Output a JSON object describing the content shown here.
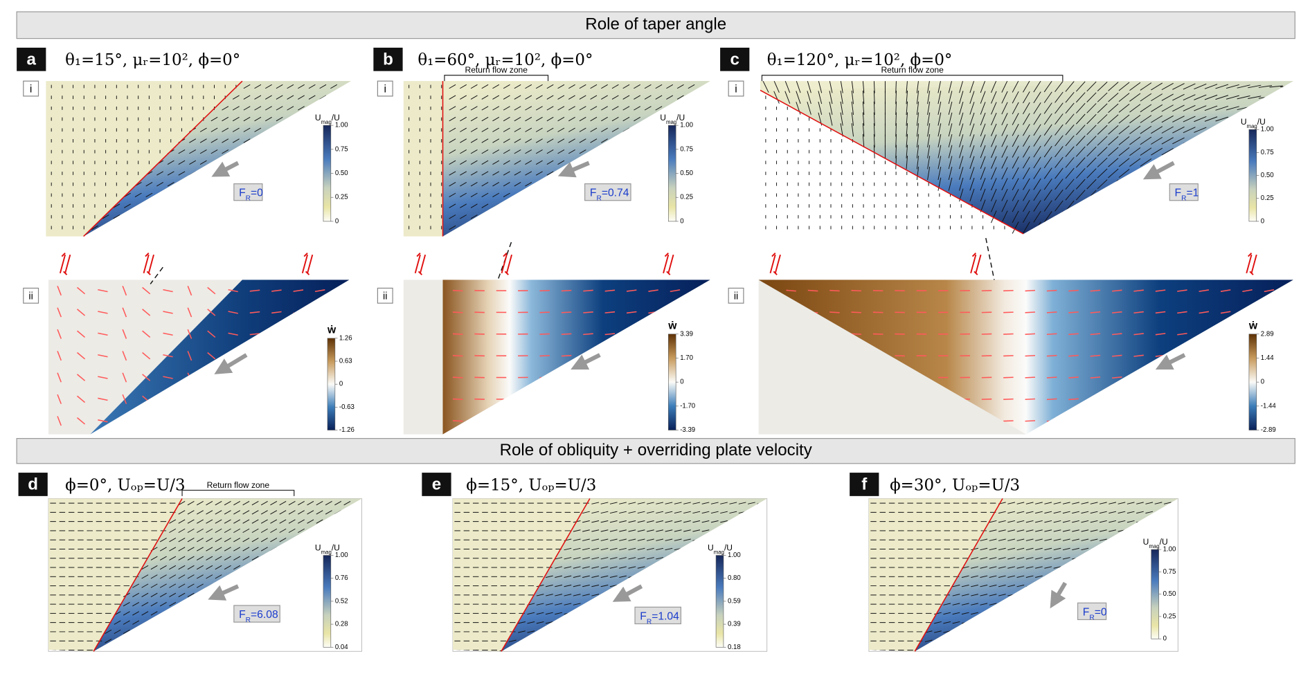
{
  "header_top": "Role of taper angle",
  "header_bottom": "Role of obliquity + overriding plate velocity",
  "panels": [
    {
      "letter": "a",
      "title": "θ₁=15°, μᵣ=10², ϕ=0°",
      "sub_i": "i",
      "sub_ii": "ii",
      "colorbar": {
        "label": [
          "U",
          "mag",
          "/U"
        ],
        "ticks": [
          "1.00",
          "0.75",
          "0.50",
          "0.25",
          "0"
        ]
      },
      "fr": [
        "F",
        "R",
        "=0"
      ],
      "colorbar_ii": {
        "label": "ẇ",
        "ticks": [
          "1.26",
          "0.63",
          "0",
          "-0.63",
          "-1.26"
        ]
      }
    },
    {
      "letter": "b",
      "title": "θ₁=60°, μᵣ=10², ϕ=0°",
      "sub_i": "i",
      "sub_ii": "ii",
      "return_flow": "Return flow zone",
      "colorbar": {
        "label": [
          "U",
          "mag",
          "/U"
        ],
        "ticks": [
          "1.00",
          "0.75",
          "0.50",
          "0.25",
          "0"
        ]
      },
      "fr": [
        "F",
        "R",
        "=0.74"
      ],
      "colorbar_ii": {
        "label": "ẇ",
        "ticks": [
          "3.39",
          "1.70",
          "0",
          "-1.70",
          "-3.39"
        ]
      }
    },
    {
      "letter": "c",
      "title": "θ₁=120°, μᵣ=10², ϕ=0°",
      "sub_i": "i",
      "sub_ii": "ii",
      "return_flow": "Return flow zone",
      "colorbar": {
        "label": [
          "U",
          "mag",
          "/U"
        ],
        "ticks": [
          "1.00",
          "0.75",
          "0.50",
          "0.25",
          "0"
        ]
      },
      "fr": [
        "F",
        "R",
        "=1"
      ],
      "colorbar_ii": {
        "label": "ẇ",
        "ticks": [
          "2.89",
          "1.44",
          "0",
          "-1.44",
          "-2.89"
        ]
      }
    },
    {
      "letter": "d",
      "title": "ϕ=0°, Uₒₚ=U/3",
      "return_flow": "Return flow zone",
      "colorbar": {
        "label": [
          "U",
          "mag",
          "/U"
        ],
        "ticks": [
          "1.00",
          "0.76",
          "0.52",
          "0.28",
          "0.04"
        ]
      },
      "fr": [
        "F",
        "R",
        "=6.08"
      ]
    },
    {
      "letter": "e",
      "title": "ϕ=15°, Uₒₚ=U/3",
      "colorbar": {
        "label": [
          "U",
          "mag",
          "/U"
        ],
        "ticks": [
          "1.00",
          "0.80",
          "0.59",
          "0.39",
          "0.18"
        ]
      },
      "fr": [
        "F",
        "R",
        "=1.04"
      ]
    },
    {
      "letter": "f",
      "title": "ϕ=30°, Uₒₚ=U/3",
      "colorbar": {
        "label": [
          "U",
          "mag",
          "/U"
        ],
        "ticks": [
          "1.00",
          "0.75",
          "0.50",
          "0.25",
          "0"
        ]
      },
      "fr": [
        "F",
        "R",
        "=0"
      ]
    }
  ]
}
